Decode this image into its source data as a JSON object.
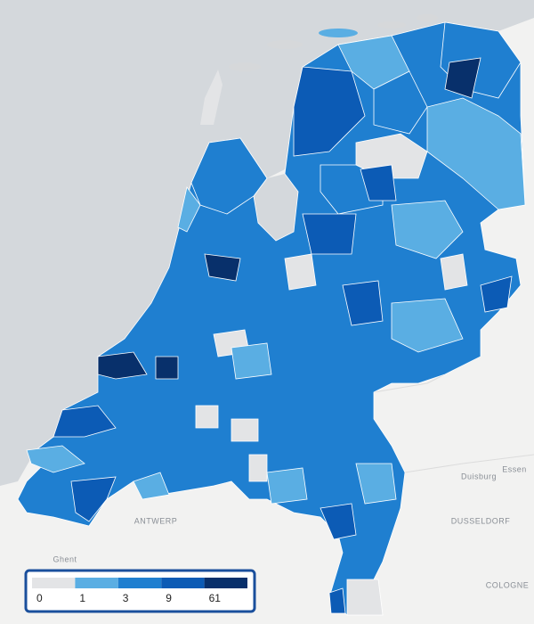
{
  "places": [
    "ANTWERP",
    "DUSSELDORF",
    "Duisburg",
    "Essen",
    "COLOGNE",
    "Ghent"
  ],
  "legend": {
    "ticks": [
      0,
      1,
      3,
      9,
      61
    ],
    "colors": [
      "#e3e4e6",
      "#5aaee3",
      "#1f7fd0",
      "#0c5bb5",
      "#08306b"
    ]
  }
}
